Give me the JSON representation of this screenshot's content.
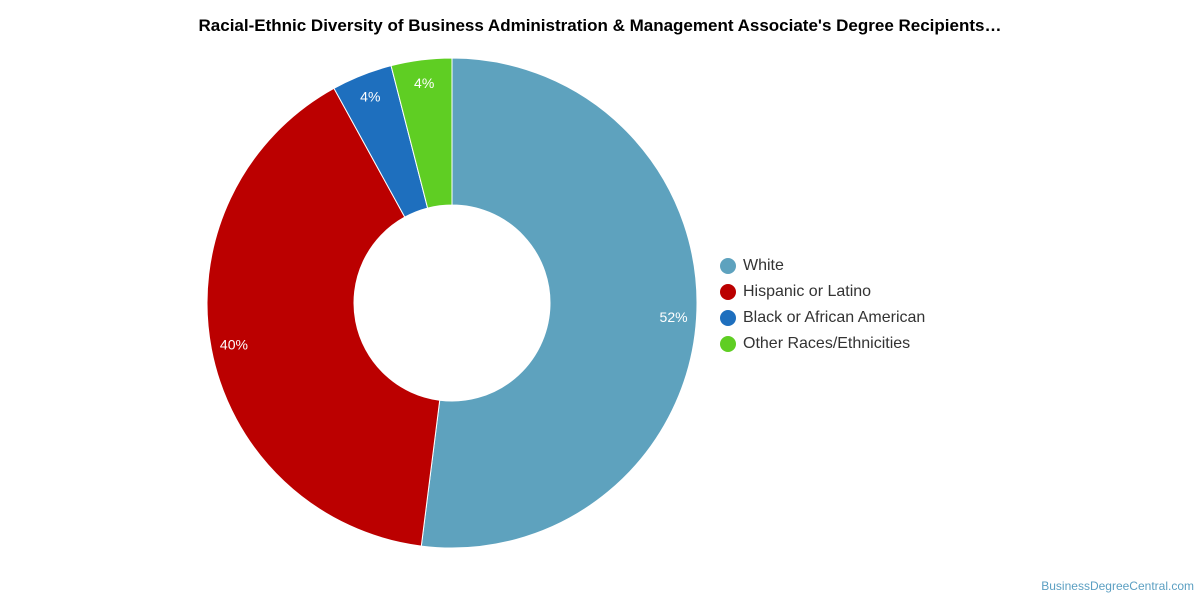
{
  "chart_data": {
    "type": "pie",
    "variant": "donut",
    "title": "Racial-Ethnic Diversity of Business Administration & Management Associate's Degree Recipients…",
    "start_angle_deg": 0,
    "direction": "clockwise",
    "legend_position": "right",
    "slices": [
      {
        "label": "White",
        "value": 52,
        "display": "52%",
        "color": "#5ea2be"
      },
      {
        "label": "Hispanic or Latino",
        "value": 40,
        "display": "40%",
        "color": "#bb0000"
      },
      {
        "label": "Black or African American",
        "value": 4,
        "display": "4%",
        "color": "#1e6fbe"
      },
      {
        "label": "Other Races/Ethnicities",
        "value": 4,
        "display": "4%",
        "color": "#5fce23"
      }
    ]
  },
  "footer": {
    "watermark": "BusinessDegreeCentral.com"
  }
}
